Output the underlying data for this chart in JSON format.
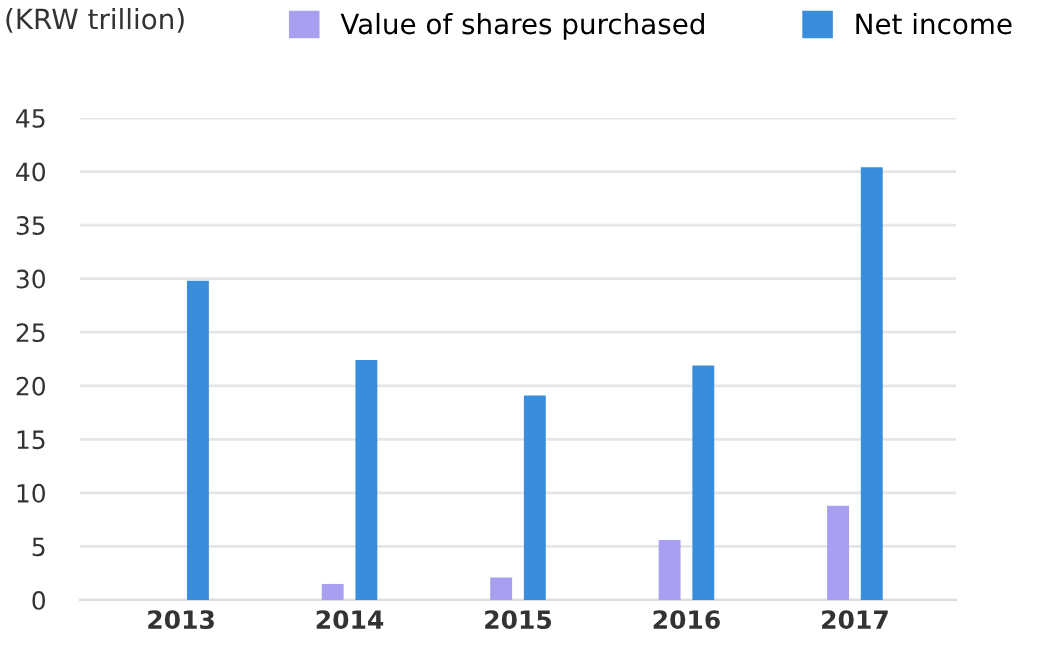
{
  "chart_data": {
    "type": "bar",
    "ylabel": "(KRW trillion)",
    "categories": [
      "2013",
      "2014",
      "2015",
      "2016",
      "2017"
    ],
    "series": [
      {
        "name": "Value of shares purchased",
        "color": "#a99ff0",
        "values": [
          0,
          1.5,
          2.1,
          5.6,
          8.8
        ]
      },
      {
        "name": "Net income",
        "color": "#3a8ddb",
        "values": [
          29.8,
          22.4,
          19.1,
          21.9,
          40.4
        ]
      }
    ],
    "ylim": [
      0,
      45
    ],
    "yticks": [
      0,
      5,
      10,
      15,
      20,
      25,
      30,
      35,
      40,
      45
    ],
    "grid": "y",
    "legend": "top right"
  }
}
